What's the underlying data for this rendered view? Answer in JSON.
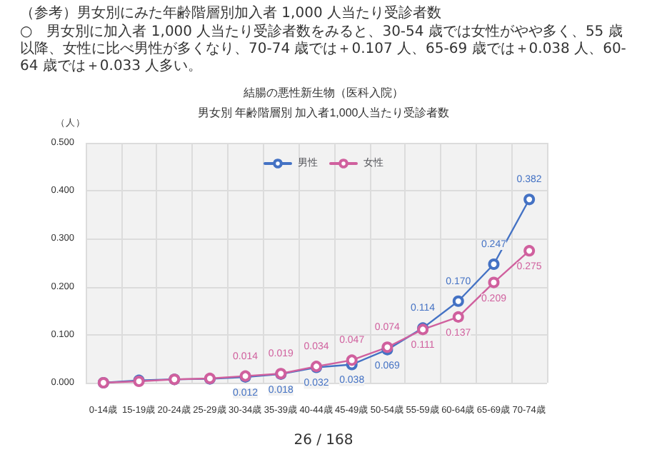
{
  "chart_data": {
    "type": "line",
    "title": "結腸の悪性新生物（医科入院）",
    "subtitle": "男女別 年齢階層別 加入者1,000人当たり受診者数",
    "ylabel": "（人）",
    "annotations": [
      "（参考）男女別にみた年齢階層別加入者 1,000 人当たり受診者数",
      "○　男女別に加入者 1,000 人当たり受診者数をみると、30-54 歳では女性がやや多く、55 歳以降、女性に比べ男性が多くなり、70-74 歳では＋0.107 人、65-69 歳では＋0.038 人、60-64 歳では＋0.033 人多い。",
      "26 / 168"
    ],
    "categories": [
      "0-14歳",
      "15-19歳",
      "20-24歳",
      "25-29歳",
      "30-34歳",
      "35-39歳",
      "40-44歳",
      "45-49歳",
      "50-54歳",
      "55-59歳",
      "60-64歳",
      "65-69歳",
      "70-74歳"
    ],
    "series": [
      {
        "name": "男性",
        "color": "#4472c4",
        "values": [
          0.0,
          0.005,
          0.007,
          0.008,
          0.012,
          0.018,
          0.032,
          0.038,
          0.069,
          0.114,
          0.17,
          0.247,
          0.382
        ],
        "value_labels": [
          null,
          null,
          null,
          null,
          "0.012",
          "0.018",
          "0.032",
          "0.038",
          "0.069",
          "0.114",
          "0.170",
          "0.247",
          "0.382"
        ]
      },
      {
        "name": "女性",
        "color": "#d0609e",
        "values": [
          0.0,
          0.003,
          0.007,
          0.009,
          0.014,
          0.019,
          0.034,
          0.047,
          0.074,
          0.111,
          0.137,
          0.209,
          0.275
        ],
        "value_labels": [
          null,
          null,
          null,
          null,
          "0.014",
          "0.019",
          "0.034",
          "0.047",
          "0.074",
          "0.111",
          "0.137",
          "0.209",
          "0.275"
        ]
      }
    ],
    "ylim": [
      0,
      0.5
    ],
    "yticks": [
      {
        "value": 0,
        "label": "0.000"
      },
      {
        "value": 0.1,
        "label": "0.100"
      },
      {
        "value": 0.2,
        "label": "0.200"
      },
      {
        "value": 0.3,
        "label": "0.300"
      },
      {
        "value": 0.4,
        "label": "0.400"
      },
      {
        "value": 0.5,
        "label": "0.500"
      }
    ],
    "grid": true,
    "legend": "top",
    "marker": "circle",
    "line_style": "solid"
  }
}
